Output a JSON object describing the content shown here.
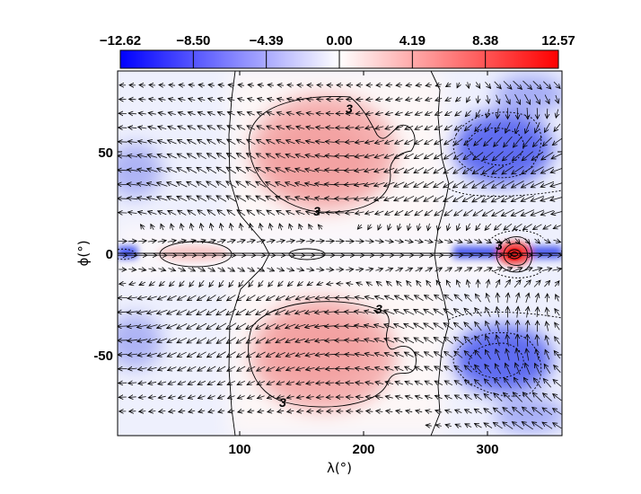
{
  "chart_data": {
    "type": "heatmap",
    "title": "",
    "xlabel": "λ(°)",
    "ylabel": "ϕ(°)",
    "xlim": [
      0,
      360
    ],
    "ylim": [
      -90,
      90
    ],
    "x_ticks": [
      100,
      200,
      300
    ],
    "y_ticks": [
      50,
      0,
      -50
    ],
    "colorbar": {
      "min": -12.62,
      "max": 12.57,
      "colors": [
        "#0000ff",
        "#ffffff",
        "#ff0000"
      ],
      "tick_labels": [
        "−12.62",
        "−8.50",
        "−4.39",
        "0.00",
        "4.19",
        "8.38",
        "12.57"
      ]
    },
    "contour_labels": [
      "3",
      "3",
      "3",
      "3",
      "3"
    ],
    "features": [
      {
        "name": "north-warm-lobe",
        "lon": 175,
        "lat": 52,
        "value": 3.8
      },
      {
        "name": "south-warm-lobe",
        "lon": 175,
        "lat": -52,
        "value": 3.8
      },
      {
        "name": "north-cold-lobe",
        "lon": 330,
        "lat": 48,
        "value": -8.5
      },
      {
        "name": "south-cold-lobe",
        "lon": 330,
        "lat": -48,
        "value": -8.5
      },
      {
        "name": "equatorial-hot-spot",
        "lon": 320,
        "lat": 0,
        "value": 12.57
      },
      {
        "name": "western-cold-edge",
        "lon": 10,
        "lat": 0,
        "value": -6
      }
    ]
  }
}
